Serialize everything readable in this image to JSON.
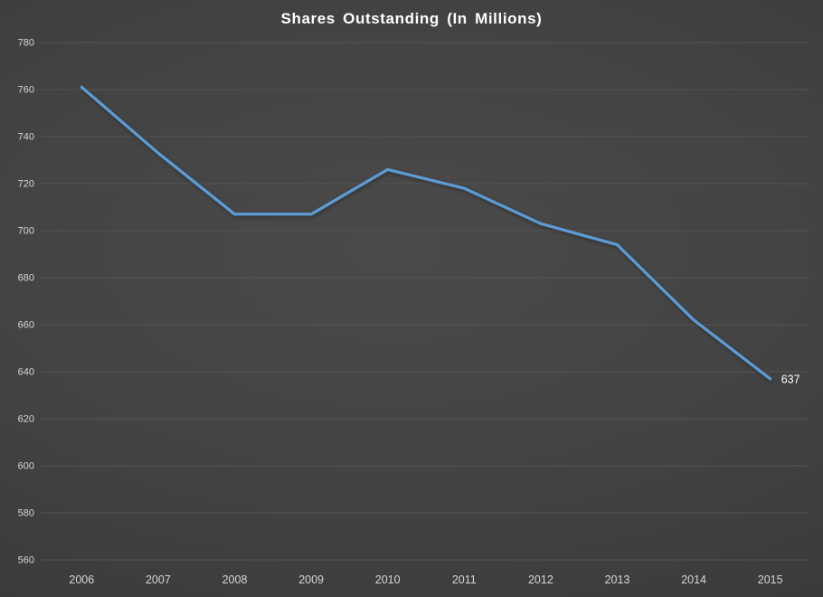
{
  "chart_data": {
    "type": "line",
    "title": "Shares Outstanding (In Millions)",
    "xlabel": "",
    "ylabel": "",
    "categories": [
      "2006",
      "2007",
      "2008",
      "2009",
      "2010",
      "2011",
      "2012",
      "2013",
      "2014",
      "2015"
    ],
    "series": [
      {
        "name": "Shares Outstanding",
        "values": [
          761,
          733,
          707,
          707,
          726,
          718,
          703,
          694,
          662,
          637
        ]
      }
    ],
    "ylim": [
      560,
      780
    ],
    "yticks": [
      560,
      580,
      600,
      620,
      640,
      660,
      680,
      700,
      720,
      740,
      760,
      780
    ],
    "grid": true,
    "legend": "none",
    "end_label": "637"
  },
  "colors": {
    "line": "#5b9bd5",
    "gridline": "#545454",
    "tick_text": "#d6d6d6",
    "title_text": "#ffffff",
    "end_label_text": "#ffffff",
    "background": "#3f3f3f"
  }
}
